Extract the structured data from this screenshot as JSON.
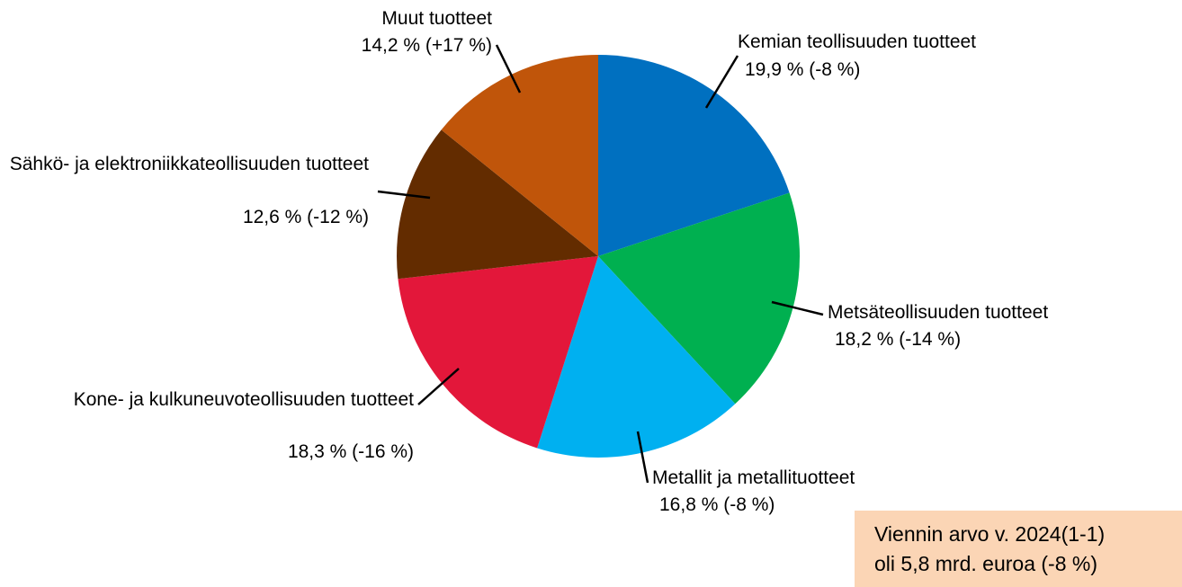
{
  "chart_data": {
    "type": "pie",
    "categories": [
      "Kemian teollisuuden tuotteet",
      "Metsäteollisuuden tuotteet",
      "Metallit ja metallituotteet",
      "Kone- ja kulkuneuvoteollisuuden tuotteet",
      "Sähkö- ja elektroniikkateollisuuden tuotteet",
      "Muut tuotteet"
    ],
    "values": [
      19.9,
      18.2,
      16.8,
      18.3,
      12.6,
      14.2
    ],
    "value_labels": [
      "19,9 % (-8 %)",
      "18,2 % (-14 %)",
      "16,8 % (-8 %)",
      "18,3 % (-16 %)",
      "12,6 % (-12 %)",
      "14,2 % (+17 %)"
    ],
    "colors": [
      "#0070c0",
      "#00b050",
      "#00b0f0",
      "#e3173a",
      "#632c00",
      "#c0550a"
    ],
    "annotation": [
      "Viennin arvo v. 2024(1-1)",
      "oli 5,8 mrd. euroa (-8 %)"
    ]
  }
}
